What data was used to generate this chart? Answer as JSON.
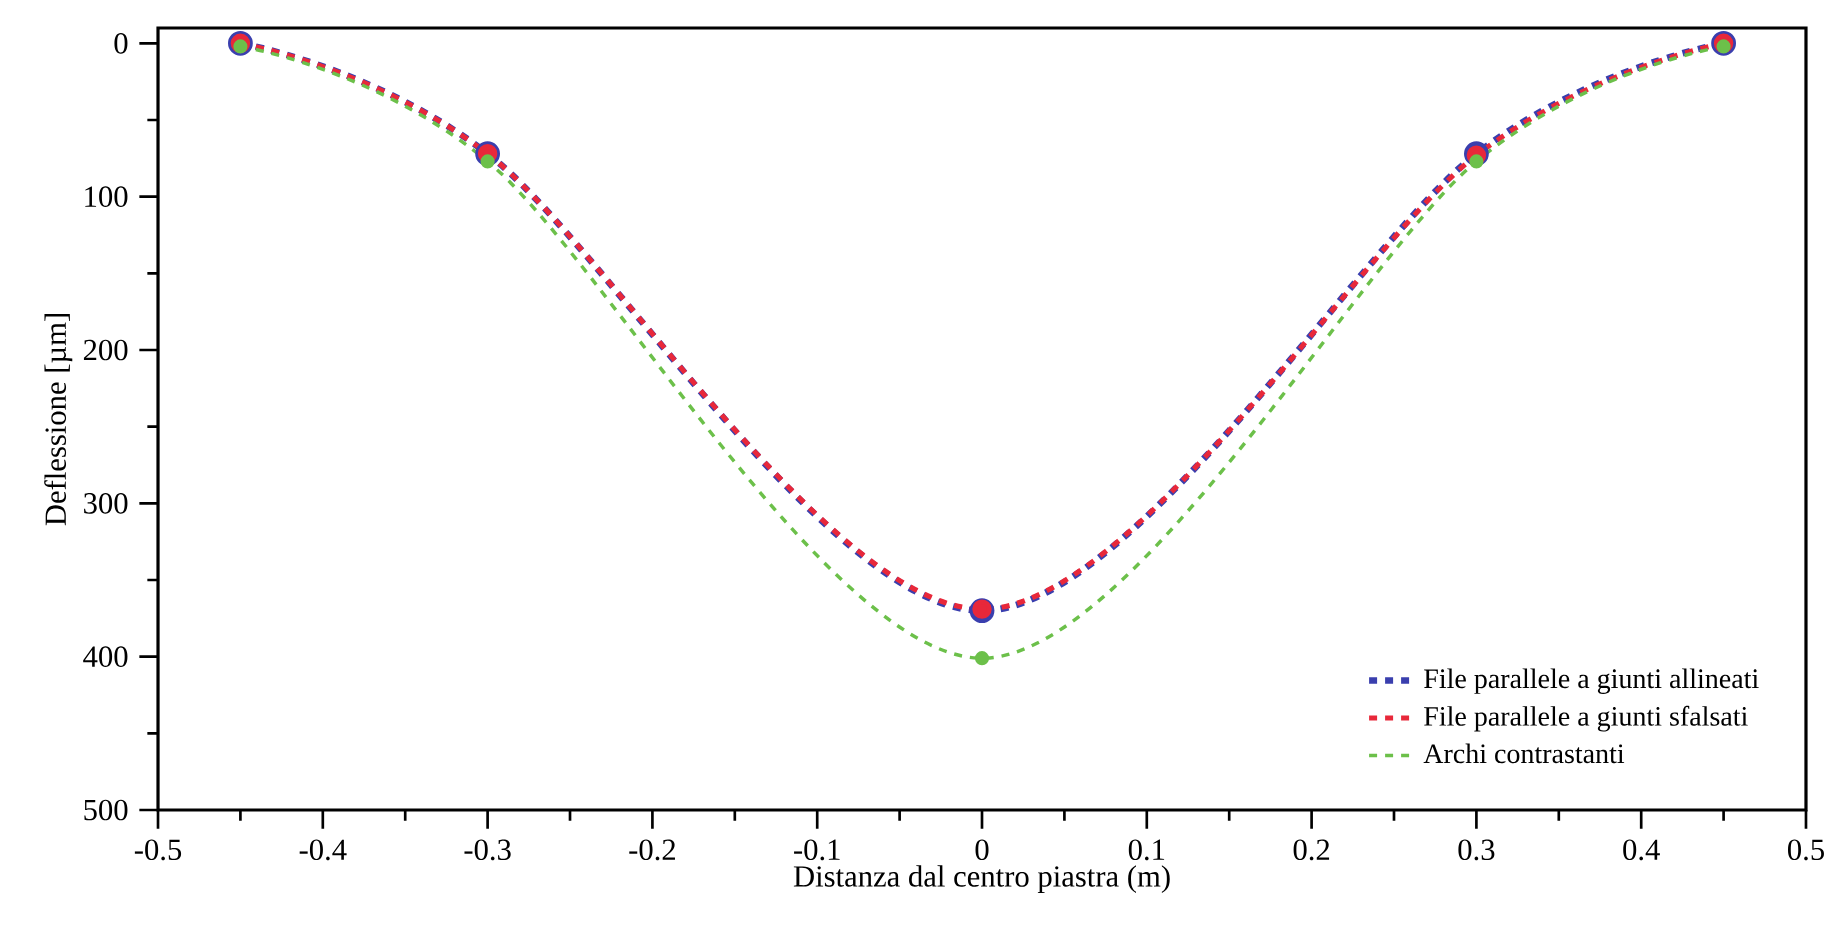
{
  "chart_data": {
    "type": "line",
    "xlabel": "Distanza dal centro piastra (m)",
    "ylabel": "Deflessione [µm]",
    "x": [
      -0.45,
      -0.3,
      0,
      0.3,
      0.45
    ],
    "series": [
      {
        "name": "File parallele a giunti allineati",
        "color": "#3a3fae",
        "values": [
          0,
          72,
          370,
          72,
          0
        ]
      },
      {
        "name": "File parallele a giunti sfalsati",
        "color": "#e8283a",
        "values": [
          0,
          72,
          369,
          73,
          0
        ]
      },
      {
        "name": "Archi contrastanti",
        "color": "#6cc04a",
        "values": [
          2,
          77,
          401,
          77,
          2
        ]
      }
    ],
    "xlim": [
      -0.5,
      0.5
    ],
    "xticks": [
      -0.5,
      -0.4,
      -0.3,
      -0.2,
      -0.1,
      0,
      0.1,
      0.2,
      0.3,
      0.4,
      0.5
    ],
    "ylim": [
      500,
      -10
    ],
    "yticks": [
      0,
      100,
      200,
      300,
      400,
      500
    ],
    "grid": false,
    "legend": "bottom right",
    "marker": "circle",
    "line_style": "dashed"
  }
}
